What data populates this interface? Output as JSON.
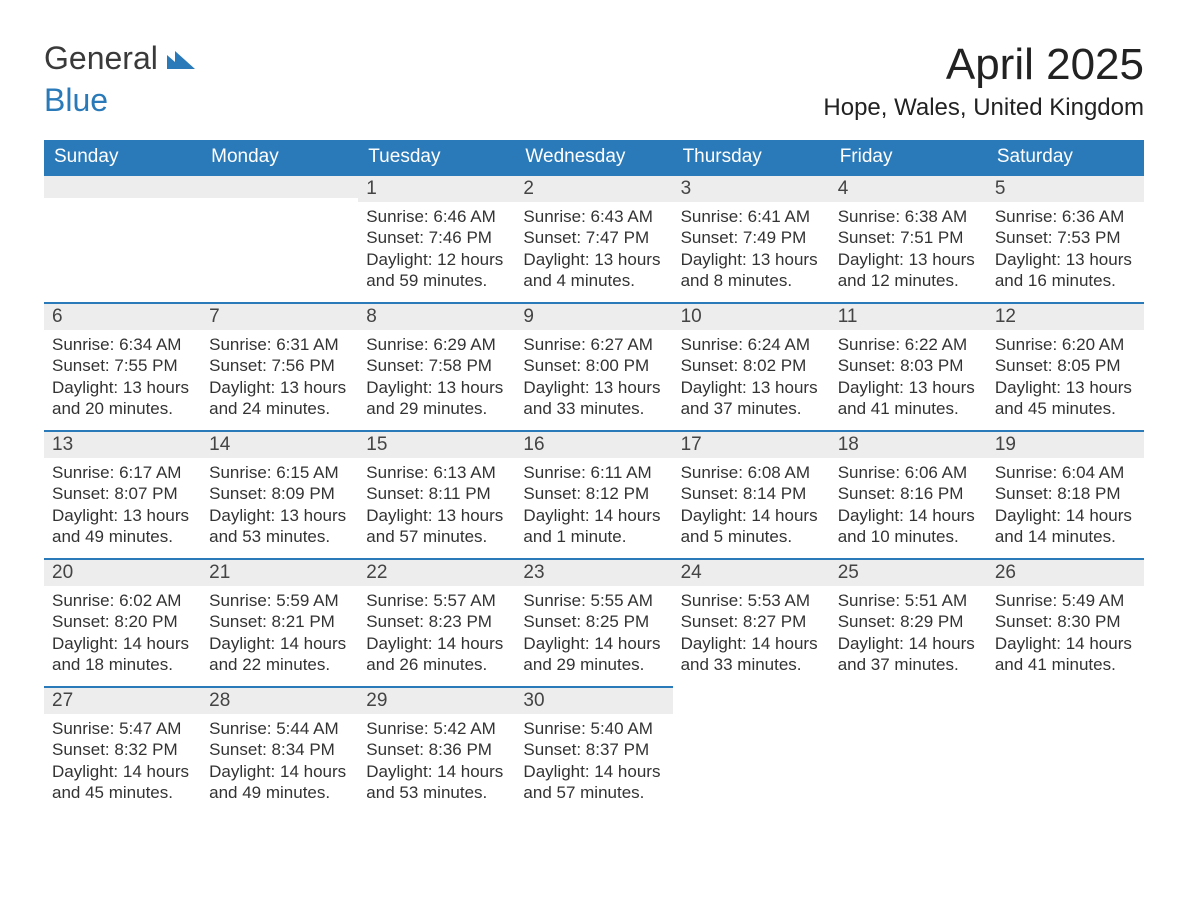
{
  "logo": {
    "word1": "General",
    "word2": "Blue"
  },
  "title": "April 2025",
  "subtitle": "Hope, Wales, United Kingdom",
  "colors": {
    "header_bg": "#2a7ab9",
    "header_text": "#ffffff",
    "daynum_bg": "#ededed",
    "rule": "#2a7ab9",
    "body_text": "#333333",
    "page_bg": "#ffffff"
  },
  "weekdays": [
    "Sunday",
    "Monday",
    "Tuesday",
    "Wednesday",
    "Thursday",
    "Friday",
    "Saturday"
  ],
  "weeks": [
    [
      {
        "n": "",
        "lines": []
      },
      {
        "n": "",
        "lines": []
      },
      {
        "n": "1",
        "lines": [
          "Sunrise: 6:46 AM",
          "Sunset: 7:46 PM",
          "Daylight: 12 hours and 59 minutes."
        ]
      },
      {
        "n": "2",
        "lines": [
          "Sunrise: 6:43 AM",
          "Sunset: 7:47 PM",
          "Daylight: 13 hours and 4 minutes."
        ]
      },
      {
        "n": "3",
        "lines": [
          "Sunrise: 6:41 AM",
          "Sunset: 7:49 PM",
          "Daylight: 13 hours and 8 minutes."
        ]
      },
      {
        "n": "4",
        "lines": [
          "Sunrise: 6:38 AM",
          "Sunset: 7:51 PM",
          "Daylight: 13 hours and 12 minutes."
        ]
      },
      {
        "n": "5",
        "lines": [
          "Sunrise: 6:36 AM",
          "Sunset: 7:53 PM",
          "Daylight: 13 hours and 16 minutes."
        ]
      }
    ],
    [
      {
        "n": "6",
        "lines": [
          "Sunrise: 6:34 AM",
          "Sunset: 7:55 PM",
          "Daylight: 13 hours and 20 minutes."
        ]
      },
      {
        "n": "7",
        "lines": [
          "Sunrise: 6:31 AM",
          "Sunset: 7:56 PM",
          "Daylight: 13 hours and 24 minutes."
        ]
      },
      {
        "n": "8",
        "lines": [
          "Sunrise: 6:29 AM",
          "Sunset: 7:58 PM",
          "Daylight: 13 hours and 29 minutes."
        ]
      },
      {
        "n": "9",
        "lines": [
          "Sunrise: 6:27 AM",
          "Sunset: 8:00 PM",
          "Daylight: 13 hours and 33 minutes."
        ]
      },
      {
        "n": "10",
        "lines": [
          "Sunrise: 6:24 AM",
          "Sunset: 8:02 PM",
          "Daylight: 13 hours and 37 minutes."
        ]
      },
      {
        "n": "11",
        "lines": [
          "Sunrise: 6:22 AM",
          "Sunset: 8:03 PM",
          "Daylight: 13 hours and 41 minutes."
        ]
      },
      {
        "n": "12",
        "lines": [
          "Sunrise: 6:20 AM",
          "Sunset: 8:05 PM",
          "Daylight: 13 hours and 45 minutes."
        ]
      }
    ],
    [
      {
        "n": "13",
        "lines": [
          "Sunrise: 6:17 AM",
          "Sunset: 8:07 PM",
          "Daylight: 13 hours and 49 minutes."
        ]
      },
      {
        "n": "14",
        "lines": [
          "Sunrise: 6:15 AM",
          "Sunset: 8:09 PM",
          "Daylight: 13 hours and 53 minutes."
        ]
      },
      {
        "n": "15",
        "lines": [
          "Sunrise: 6:13 AM",
          "Sunset: 8:11 PM",
          "Daylight: 13 hours and 57 minutes."
        ]
      },
      {
        "n": "16",
        "lines": [
          "Sunrise: 6:11 AM",
          "Sunset: 8:12 PM",
          "Daylight: 14 hours and 1 minute."
        ]
      },
      {
        "n": "17",
        "lines": [
          "Sunrise: 6:08 AM",
          "Sunset: 8:14 PM",
          "Daylight: 14 hours and 5 minutes."
        ]
      },
      {
        "n": "18",
        "lines": [
          "Sunrise: 6:06 AM",
          "Sunset: 8:16 PM",
          "Daylight: 14 hours and 10 minutes."
        ]
      },
      {
        "n": "19",
        "lines": [
          "Sunrise: 6:04 AM",
          "Sunset: 8:18 PM",
          "Daylight: 14 hours and 14 minutes."
        ]
      }
    ],
    [
      {
        "n": "20",
        "lines": [
          "Sunrise: 6:02 AM",
          "Sunset: 8:20 PM",
          "Daylight: 14 hours and 18 minutes."
        ]
      },
      {
        "n": "21",
        "lines": [
          "Sunrise: 5:59 AM",
          "Sunset: 8:21 PM",
          "Daylight: 14 hours and 22 minutes."
        ]
      },
      {
        "n": "22",
        "lines": [
          "Sunrise: 5:57 AM",
          "Sunset: 8:23 PM",
          "Daylight: 14 hours and 26 minutes."
        ]
      },
      {
        "n": "23",
        "lines": [
          "Sunrise: 5:55 AM",
          "Sunset: 8:25 PM",
          "Daylight: 14 hours and 29 minutes."
        ]
      },
      {
        "n": "24",
        "lines": [
          "Sunrise: 5:53 AM",
          "Sunset: 8:27 PM",
          "Daylight: 14 hours and 33 minutes."
        ]
      },
      {
        "n": "25",
        "lines": [
          "Sunrise: 5:51 AM",
          "Sunset: 8:29 PM",
          "Daylight: 14 hours and 37 minutes."
        ]
      },
      {
        "n": "26",
        "lines": [
          "Sunrise: 5:49 AM",
          "Sunset: 8:30 PM",
          "Daylight: 14 hours and 41 minutes."
        ]
      }
    ],
    [
      {
        "n": "27",
        "lines": [
          "Sunrise: 5:47 AM",
          "Sunset: 8:32 PM",
          "Daylight: 14 hours and 45 minutes."
        ]
      },
      {
        "n": "28",
        "lines": [
          "Sunrise: 5:44 AM",
          "Sunset: 8:34 PM",
          "Daylight: 14 hours and 49 minutes."
        ]
      },
      {
        "n": "29",
        "lines": [
          "Sunrise: 5:42 AM",
          "Sunset: 8:36 PM",
          "Daylight: 14 hours and 53 minutes."
        ]
      },
      {
        "n": "30",
        "lines": [
          "Sunrise: 5:40 AM",
          "Sunset: 8:37 PM",
          "Daylight: 14 hours and 57 minutes."
        ]
      },
      {
        "n": "",
        "lines": [],
        "trailing": true
      },
      {
        "n": "",
        "lines": [],
        "trailing": true
      },
      {
        "n": "",
        "lines": [],
        "trailing": true
      }
    ]
  ]
}
